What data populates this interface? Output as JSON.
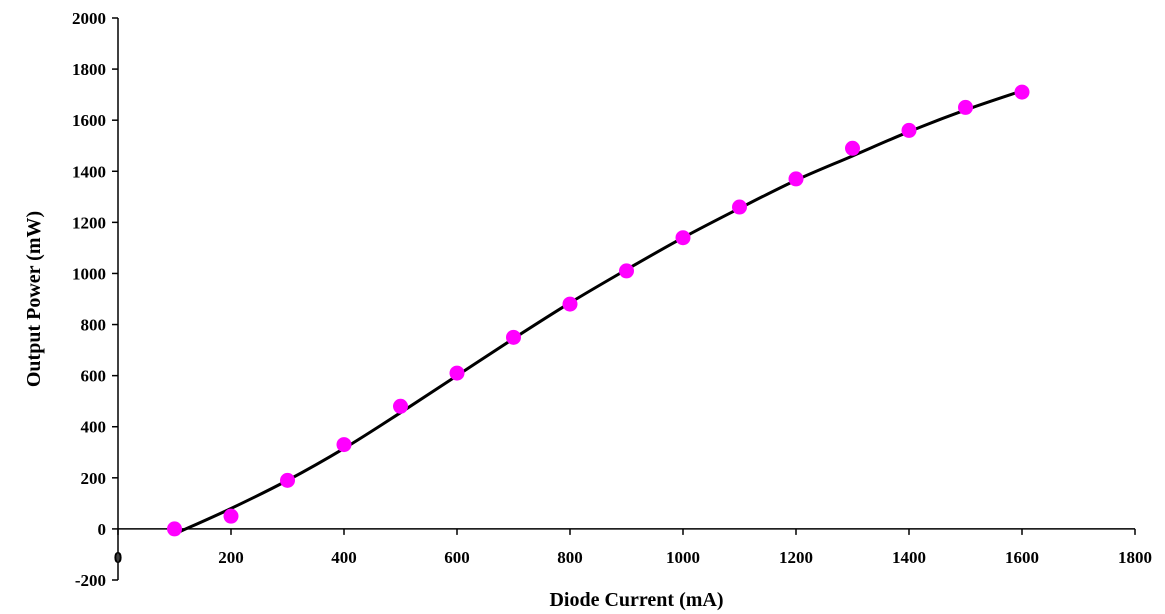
{
  "chart_data": {
    "type": "scatter",
    "title": "",
    "xlabel": "Diode Current (mA)",
    "ylabel": "Output Power (mW)",
    "xlim": [
      0,
      1800
    ],
    "ylim": [
      -200,
      2000
    ],
    "x_ticks": [
      0,
      200,
      400,
      600,
      800,
      1000,
      1200,
      1400,
      1600,
      1800
    ],
    "y_ticks": [
      -200,
      0,
      200,
      400,
      600,
      800,
      1000,
      1200,
      1400,
      1600,
      1800,
      2000
    ],
    "grid": false,
    "legend": "none",
    "series": [
      {
        "kind": "scatter",
        "color": "#ff00ff",
        "x": [
          100,
          200,
          300,
          400,
          500,
          600,
          700,
          800,
          900,
          1000,
          1100,
          1200,
          1300,
          1400,
          1500,
          1600
        ],
        "y": [
          0,
          50,
          190,
          330,
          480,
          610,
          750,
          880,
          1010,
          1140,
          1260,
          1370,
          1490,
          1560,
          1650,
          1710
        ]
      },
      {
        "kind": "fit-line",
        "color": "#000000",
        "x": [
          110,
          200,
          300,
          400,
          500,
          600,
          700,
          800,
          900,
          1000,
          1100,
          1200,
          1300,
          1400,
          1500,
          1600
        ],
        "y": [
          -10,
          80,
          190,
          315,
          455,
          600,
          745,
          885,
          1015,
          1140,
          1255,
          1365,
          1460,
          1555,
          1640,
          1715
        ]
      }
    ]
  }
}
